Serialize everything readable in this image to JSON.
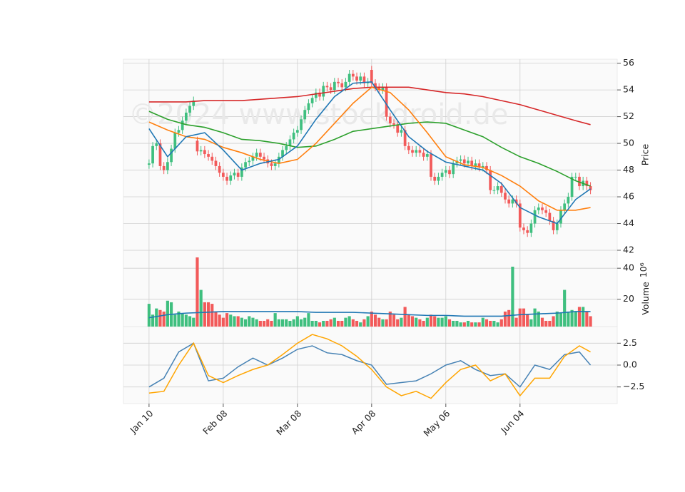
{
  "chart_data": [
    {
      "type": "candlestick",
      "watermark": "©2024 www.stockdroid.de",
      "y_label": "Price",
      "xlim": [
        -6.9,
        126.2
      ],
      "ylim": [
        42,
        56.3
      ],
      "yticks": [
        42,
        44,
        46,
        48,
        50,
        52,
        54,
        56
      ],
      "grid": true,
      "up_color": "#3fbf7f",
      "down_color": "#f25a5a",
      "categories": [
        "Jan 10",
        null,
        null,
        null,
        null,
        null,
        null,
        null,
        null,
        null,
        null,
        null,
        null,
        null,
        null,
        null,
        null,
        null,
        null,
        null,
        "Feb 08",
        null,
        null,
        null,
        null,
        null,
        null,
        null,
        null,
        null,
        null,
        null,
        null,
        null,
        null,
        null,
        null,
        null,
        null,
        null,
        "Mar 08",
        null,
        null,
        null,
        null,
        null,
        null,
        null,
        null,
        null,
        null,
        null,
        null,
        null,
        null,
        null,
        null,
        null,
        null,
        null,
        "Apr 08",
        null,
        null,
        null,
        null,
        null,
        null,
        null,
        null,
        null,
        null,
        null,
        null,
        null,
        null,
        null,
        null,
        null,
        null,
        null,
        "May 06",
        null,
        null,
        null,
        null,
        null,
        null,
        null,
        null,
        null,
        null,
        null,
        null,
        null,
        null,
        null,
        null,
        null,
        null,
        null,
        "Jun 04",
        null,
        null,
        null,
        null,
        null,
        null,
        null,
        null,
        null,
        null,
        null,
        null,
        null,
        null,
        null,
        null,
        null,
        null,
        null
      ],
      "open": [
        48.4,
        48.5,
        49.8,
        50.0,
        48.3,
        48.0,
        48.6,
        49.6,
        50.8,
        51.0,
        51.7,
        52.3,
        52.8,
        50.2,
        49.4,
        49.5,
        49.2,
        49.0,
        48.7,
        48.3,
        47.8,
        47.5,
        47.2,
        47.6,
        47.8,
        47.5,
        48.2,
        48.6,
        48.7,
        49.0,
        49.3,
        49.0,
        48.8,
        48.5,
        48.3,
        48.5,
        49.0,
        49.5,
        49.8,
        50.3,
        50.8,
        51.0,
        51.8,
        52.5,
        53.0,
        53.4,
        53.8,
        53.5,
        54.3,
        54.2,
        54.0,
        54.6,
        54.5,
        54.2,
        54.6,
        55.2,
        55.0,
        54.7,
        55.0,
        54.5,
        55.5,
        54.5,
        54.2,
        54.0,
        54.2,
        52.0,
        51.5,
        51.4,
        50.8,
        51.0,
        49.8,
        49.5,
        49.3,
        49.5,
        49.3,
        49.0,
        49.2,
        47.5,
        47.2,
        47.5,
        47.8,
        48.0,
        47.7,
        48.5,
        48.7,
        48.8,
        48.5,
        48.7,
        48.3,
        48.5,
        48.2,
        48.3,
        48.0,
        46.5,
        46.5,
        46.8,
        46.3,
        45.8,
        45.5,
        45.8,
        45.5,
        43.7,
        43.5,
        43.3,
        44.0,
        45.0,
        45.2,
        45.0,
        44.8,
        44.2,
        43.5,
        44.0,
        45.0,
        45.5,
        46.0,
        47.5,
        47.5,
        46.8,
        47.2,
        46.8
      ],
      "high": [
        48.8,
        50.1,
        50.3,
        50.3,
        48.6,
        48.9,
        49.9,
        51.1,
        51.3,
        52.0,
        52.6,
        53.1,
        53.5,
        50.5,
        49.8,
        49.8,
        49.5,
        49.3,
        49.0,
        48.6,
        48.1,
        47.8,
        47.9,
        48.1,
        48.1,
        48.5,
        48.9,
        49.0,
        49.3,
        49.6,
        49.6,
        49.3,
        49.1,
        48.8,
        48.8,
        49.3,
        49.8,
        50.1,
        50.6,
        51.1,
        51.3,
        52.1,
        52.8,
        53.3,
        53.7,
        54.1,
        54.1,
        54.6,
        54.6,
        54.5,
        54.9,
        54.9,
        54.8,
        54.9,
        55.5,
        55.5,
        55.3,
        55.3,
        55.3,
        54.9,
        55.8,
        54.8,
        54.5,
        54.5,
        54.5,
        52.3,
        51.8,
        51.7,
        51.3,
        51.3,
        50.1,
        49.8,
        49.8,
        49.8,
        49.6,
        49.5,
        49.5,
        47.8,
        47.8,
        48.1,
        48.3,
        48.3,
        48.8,
        49.0,
        49.1,
        49.1,
        49.0,
        49.0,
        48.8,
        48.8,
        48.6,
        48.6,
        48.3,
        46.8,
        47.1,
        47.1,
        46.6,
        46.1,
        46.1,
        46.1,
        45.8,
        44.0,
        43.8,
        44.3,
        45.3,
        45.5,
        45.5,
        45.3,
        45.1,
        44.5,
        44.3,
        45.3,
        45.8,
        46.3,
        47.8,
        47.8,
        47.8,
        47.5,
        47.5,
        47.1
      ],
      "low": [
        48.1,
        48.2,
        49.5,
        48.0,
        47.7,
        47.7,
        48.3,
        49.3,
        50.5,
        50.7,
        51.4,
        52.0,
        52.5,
        49.1,
        49.1,
        48.9,
        48.7,
        48.4,
        48.0,
        47.5,
        47.2,
        46.9,
        46.9,
        47.3,
        47.2,
        47.2,
        47.9,
        48.3,
        48.4,
        48.7,
        48.7,
        48.5,
        48.2,
        48.0,
        48.0,
        48.2,
        48.7,
        49.2,
        49.5,
        50.0,
        50.5,
        50.7,
        51.5,
        52.2,
        52.7,
        53.1,
        53.2,
        53.2,
        53.9,
        53.7,
        53.7,
        54.2,
        53.9,
        53.9,
        54.3,
        54.7,
        54.4,
        54.4,
        54.2,
        54.2,
        54.2,
        53.9,
        53.7,
        53.7,
        51.7,
        51.2,
        51.1,
        50.5,
        50.5,
        49.5,
        49.2,
        49.0,
        49.0,
        49.0,
        48.7,
        48.7,
        47.2,
        46.9,
        46.9,
        47.2,
        47.5,
        47.4,
        47.4,
        48.2,
        48.4,
        48.2,
        48.2,
        48.0,
        48.0,
        47.9,
        47.9,
        47.7,
        46.2,
        46.2,
        46.2,
        46.0,
        45.5,
        45.2,
        45.2,
        45.2,
        43.4,
        43.2,
        43.0,
        43.0,
        43.7,
        44.7,
        44.7,
        44.5,
        43.9,
        43.2,
        43.2,
        43.7,
        44.7,
        45.2,
        45.7,
        47.2,
        46.5,
        46.5,
        46.5,
        46.2
      ],
      "close": [
        48.5,
        49.8,
        50.0,
        48.3,
        48.0,
        48.6,
        49.6,
        50.8,
        51.0,
        51.7,
        52.3,
        52.8,
        53.2,
        49.4,
        49.5,
        49.2,
        49.0,
        48.7,
        48.3,
        47.8,
        47.5,
        47.2,
        47.6,
        47.8,
        47.5,
        48.2,
        48.6,
        48.7,
        49.0,
        49.3,
        49.0,
        48.8,
        48.5,
        48.3,
        48.5,
        49.0,
        49.5,
        49.8,
        50.3,
        50.8,
        51.0,
        51.8,
        52.5,
        53.0,
        53.4,
        53.8,
        53.5,
        54.3,
        54.2,
        54.0,
        54.6,
        54.5,
        54.2,
        54.6,
        55.2,
        55.0,
        54.7,
        55.0,
        54.5,
        54.6,
        54.5,
        54.2,
        54.0,
        54.2,
        52.0,
        51.5,
        51.4,
        50.8,
        51.0,
        49.8,
        49.5,
        49.3,
        49.5,
        49.3,
        49.0,
        49.2,
        47.5,
        47.2,
        47.5,
        47.8,
        48.0,
        47.7,
        48.5,
        48.7,
        48.8,
        48.5,
        48.7,
        48.3,
        48.5,
        48.2,
        48.3,
        48.0,
        46.5,
        46.5,
        46.8,
        46.3,
        45.8,
        45.5,
        45.8,
        45.5,
        43.7,
        43.5,
        43.3,
        44.0,
        45.0,
        45.2,
        45.0,
        44.8,
        44.2,
        43.5,
        44.0,
        45.0,
        45.5,
        46.0,
        47.5,
        47.5,
        46.8,
        47.2,
        46.8,
        46.5
      ],
      "lines": [
        {
          "color": "#d62728",
          "x": [
            0,
            5,
            10,
            15,
            20,
            25,
            30,
            35,
            40,
            45,
            50,
            55,
            60,
            65,
            70,
            75,
            80,
            85,
            90,
            95,
            100,
            105,
            110,
            115,
            119
          ],
          "values": [
            53.1,
            53.1,
            53.1,
            53.2,
            53.2,
            53.2,
            53.3,
            53.4,
            53.5,
            53.7,
            53.9,
            54.1,
            54.2,
            54.2,
            54.2,
            54.0,
            53.8,
            53.7,
            53.5,
            53.2,
            52.9,
            52.5,
            52.1,
            51.7,
            51.4
          ]
        },
        {
          "color": "#2ca02c",
          "x": [
            0,
            5,
            10,
            15,
            20,
            25,
            30,
            35,
            40,
            45,
            50,
            55,
            60,
            65,
            70,
            75,
            80,
            85,
            90,
            95,
            100,
            105,
            110,
            115,
            119
          ],
          "values": [
            52.4,
            51.8,
            51.4,
            51.2,
            50.8,
            50.3,
            50.2,
            50.0,
            49.7,
            49.8,
            50.3,
            50.9,
            51.1,
            51.3,
            51.5,
            51.6,
            51.5,
            51.0,
            50.5,
            49.7,
            49.0,
            48.5,
            47.9,
            47.2,
            46.8
          ]
        },
        {
          "color": "#ff7f0e",
          "x": [
            0,
            5,
            10,
            15,
            20,
            25,
            30,
            35,
            40,
            45,
            50,
            55,
            60,
            65,
            70,
            75,
            80,
            85,
            90,
            95,
            100,
            105,
            110,
            115,
            119
          ],
          "values": [
            51.6,
            51.0,
            50.5,
            50.3,
            49.7,
            49.3,
            48.8,
            48.5,
            48.8,
            50.0,
            51.5,
            53.0,
            54.2,
            53.8,
            52.5,
            50.8,
            49.0,
            48.4,
            48.2,
            47.6,
            46.8,
            45.7,
            45.0,
            45.0,
            45.2
          ]
        },
        {
          "color": "#1f77b4",
          "x": [
            0,
            5,
            10,
            15,
            20,
            25,
            30,
            35,
            40,
            45,
            50,
            55,
            60,
            65,
            70,
            75,
            80,
            85,
            90,
            95,
            100,
            105,
            110,
            115,
            119
          ],
          "values": [
            51.1,
            49.0,
            50.5,
            50.8,
            49.5,
            48.0,
            48.5,
            48.8,
            49.8,
            51.8,
            53.5,
            54.5,
            54.6,
            52.5,
            50.5,
            49.4,
            48.6,
            48.3,
            48.0,
            47.0,
            45.2,
            44.5,
            44.0,
            45.8,
            46.6
          ]
        }
      ]
    },
    {
      "type": "bar",
      "y_label": "Volume",
      "y_scale_label": "10⁶",
      "ylim": [
        2.3,
        51.6
      ],
      "yticks": [
        20,
        40
      ],
      "grid": true,
      "up_color": "#3fbf7f",
      "down_color": "#f25a5a",
      "values": [
        17,
        10,
        14,
        13,
        12,
        19,
        18,
        10,
        12,
        11,
        10,
        9,
        8,
        47,
        26,
        18,
        18,
        17,
        12,
        10,
        8,
        11,
        10,
        9,
        9,
        8,
        7,
        9,
        8,
        7,
        6,
        6,
        7,
        6,
        11,
        7,
        7,
        7,
        6,
        7,
        9,
        7,
        8,
        11,
        6,
        6,
        5,
        6,
        6,
        7,
        8,
        6,
        6,
        8,
        9,
        7,
        6,
        5,
        7,
        9,
        12,
        10,
        8,
        7,
        7,
        12,
        10,
        7,
        8,
        15,
        10,
        9,
        8,
        7,
        6,
        8,
        10,
        9,
        8,
        8,
        9,
        7,
        6,
        6,
        5,
        5,
        6,
        5,
        5,
        5,
        8,
        7,
        6,
        6,
        5,
        7,
        12,
        13,
        41,
        8,
        14,
        14,
        10,
        7,
        14,
        12,
        8,
        6,
        6,
        9,
        12,
        11,
        26,
        12,
        13,
        12,
        15,
        15,
        12,
        9
      ],
      "line": {
        "color": "#1f77b4",
        "x": [
          0,
          5,
          10,
          15,
          20,
          25,
          30,
          35,
          40,
          45,
          50,
          55,
          60,
          65,
          70,
          75,
          80,
          85,
          90,
          95,
          100,
          105,
          110,
          115,
          119
        ],
        "values": [
          8,
          10,
          11,
          11.5,
          12,
          12,
          12,
          12,
          12,
          11.5,
          11.5,
          11.5,
          11,
          10.5,
          10,
          9.5,
          9.5,
          9,
          9,
          9,
          10,
          10.5,
          11,
          12,
          12
        ]
      }
    },
    {
      "type": "line",
      "ylim": [
        -4.4,
        4.4
      ],
      "yticks": [
        2.5,
        {
          "value": 0,
          "label": "0.0"
        },
        {
          "value": -2.5,
          "label": "−2.5"
        }
      ],
      "grid": true,
      "series": [
        {
          "color": "#4682b4",
          "x": [
            0,
            4,
            8,
            12,
            16,
            20,
            24,
            28,
            32,
            36,
            40,
            44,
            48,
            52,
            56,
            60,
            64,
            68,
            72,
            76,
            80,
            84,
            88,
            92,
            96,
            100,
            104,
            108,
            112,
            116,
            119
          ],
          "values": [
            -2.5,
            -1.5,
            1.5,
            2.5,
            -1.8,
            -1.5,
            -0.2,
            0.8,
            0.0,
            0.8,
            1.8,
            2.2,
            1.4,
            1.2,
            0.5,
            0.0,
            -2.2,
            -2.0,
            -1.8,
            -1.0,
            0.0,
            0.5,
            -0.5,
            -1.2,
            -1.0,
            -2.5,
            0.0,
            -0.5,
            1.2,
            1.5,
            0.0
          ]
        },
        {
          "color": "#ffa500",
          "x": [
            0,
            4,
            8,
            12,
            16,
            20,
            24,
            28,
            32,
            36,
            40,
            44,
            48,
            52,
            56,
            60,
            64,
            68,
            72,
            76,
            80,
            84,
            88,
            92,
            96,
            100,
            104,
            108,
            112,
            116,
            119
          ],
          "values": [
            -3.2,
            -3.0,
            0.0,
            2.5,
            -1.2,
            -2.0,
            -1.2,
            -0.5,
            0.0,
            1.2,
            2.5,
            3.5,
            3.0,
            2.2,
            1.0,
            -0.5,
            -2.5,
            -3.5,
            -3.0,
            -3.8,
            -2.0,
            -0.5,
            0.0,
            -1.8,
            -1.0,
            -3.5,
            -1.5,
            -1.5,
            1.0,
            2.2,
            1.5
          ]
        }
      ]
    }
  ]
}
